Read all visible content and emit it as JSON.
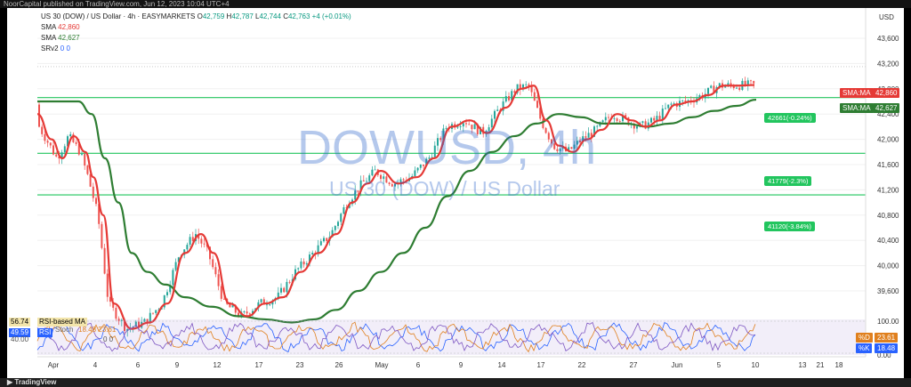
{
  "topbar": {
    "text": "NoorCapital published on TradingView.com, Jun 12, 2023 10:04 UTC+4"
  },
  "legend": {
    "symbol": "US 30 (DOW) / US Dollar · 4h · EASYMARKETS",
    "o_label": "O",
    "o": "42,759",
    "h_label": "H",
    "h": "42,787",
    "l_label": "L",
    "l": "42,744",
    "c_label": "C",
    "c": "42,763",
    "change": "+4 (+0.01%)",
    "sma1_label": "SMA",
    "sma1": "42,860",
    "sma2_label": "SMA",
    "sma2": "42,627",
    "srv_label": "SRv2",
    "srv_a": "0",
    "srv_b": "0"
  },
  "watermark": {
    "title": "DOWUSD, 4h",
    "subtitle": "US 30 (DOW) / US Dollar"
  },
  "currency": "USD",
  "price_tags": {
    "sma_fast": {
      "label": "SMA:MA",
      "value": "42,860",
      "color": "#e53935"
    },
    "sma_slow": {
      "label": "SMA:MA",
      "value": "42,627",
      "color": "#2e7d32"
    }
  },
  "levels": [
    {
      "label": "42661(-0.24%)",
      "price": 42661
    },
    {
      "label": "41779(-2.3%)",
      "price": 41779
    },
    {
      "label": "41120(-3.84%)",
      "price": 41120
    }
  ],
  "indicator": {
    "rsi_value": "56.74",
    "rsi_label": "RSI-based MA",
    "stoch_value": "49.59",
    "stoch_label": "RSI",
    "stoch_text": "Stoch",
    "stoch_vals": "18.48  23.61",
    "rsi_small": "40.00",
    "stoch_small": "0  0",
    "d_label": "%D",
    "d_value": "23.61",
    "k_label": "%K",
    "k_value": "18.48",
    "axis_top": "100.00",
    "axis_bottom": "0.00"
  },
  "footer": {
    "brand": "TradingView"
  },
  "chart_data": {
    "type": "line",
    "title": "DOWUSD, 4h",
    "ylabel": "USD",
    "ylim": [
      39600,
      43900
    ],
    "y_ticks": [
      "43,600",
      "43,200",
      "42,800",
      "42,400",
      "42,000",
      "41,600",
      "41,200",
      "40,800",
      "40,400",
      "40,000",
      "39,600"
    ],
    "x_ticks": [
      "Apr",
      "4",
      "6",
      "9",
      "12",
      "17",
      "23",
      "26",
      "May",
      "6",
      "9",
      "14",
      "17",
      "22",
      "27",
      "Jun",
      "5",
      "10",
      "13",
      "18",
      "21"
    ],
    "series": [
      {
        "name": "SMA",
        "color": "#e53935",
        "last": 42860
      },
      {
        "name": "SMA",
        "color": "#2e7d32",
        "last": 42627
      }
    ],
    "horizontal_levels": [
      42661,
      41779,
      41120
    ],
    "last_close": 42763
  }
}
